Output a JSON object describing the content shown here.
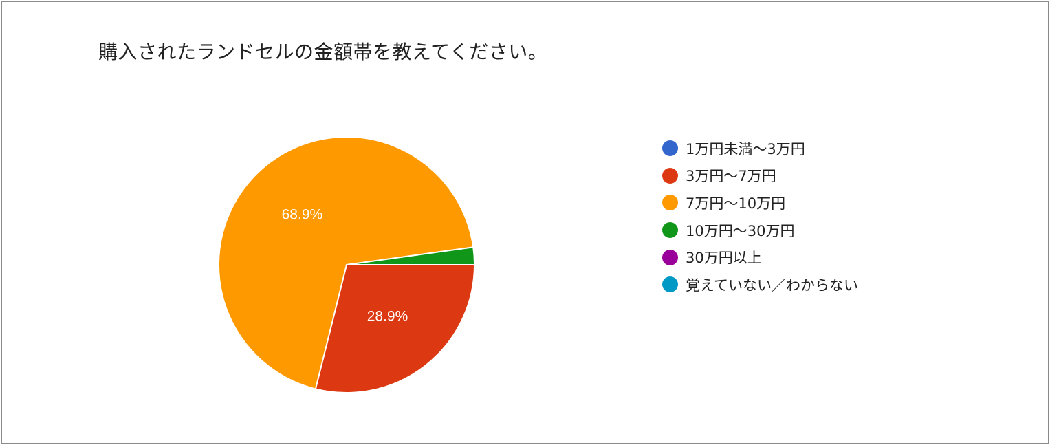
{
  "title": "購入されたランドセルの金額帯を教えてください。",
  "chart_data": {
    "type": "pie",
    "title": "購入されたランドセルの金額帯を教えてください。",
    "legend_position": "right",
    "slices": [
      {
        "label": "1万円未満〜3万円",
        "value": 0.0,
        "color": "#3366cc",
        "display": ""
      },
      {
        "label": "3万円〜7万円",
        "value": 28.9,
        "color": "#dc3912",
        "display": "28.9%"
      },
      {
        "label": "7万円〜10万円",
        "value": 68.9,
        "color": "#ff9900",
        "display": "68.9%"
      },
      {
        "label": "10万円〜30万円",
        "value": 2.2,
        "color": "#109618",
        "display": ""
      },
      {
        "label": "30万円以上",
        "value": 0.0,
        "color": "#990099",
        "display": ""
      },
      {
        "label": "覚えていない／わからない",
        "value": 0.0,
        "color": "#0099c6",
        "display": ""
      }
    ]
  }
}
